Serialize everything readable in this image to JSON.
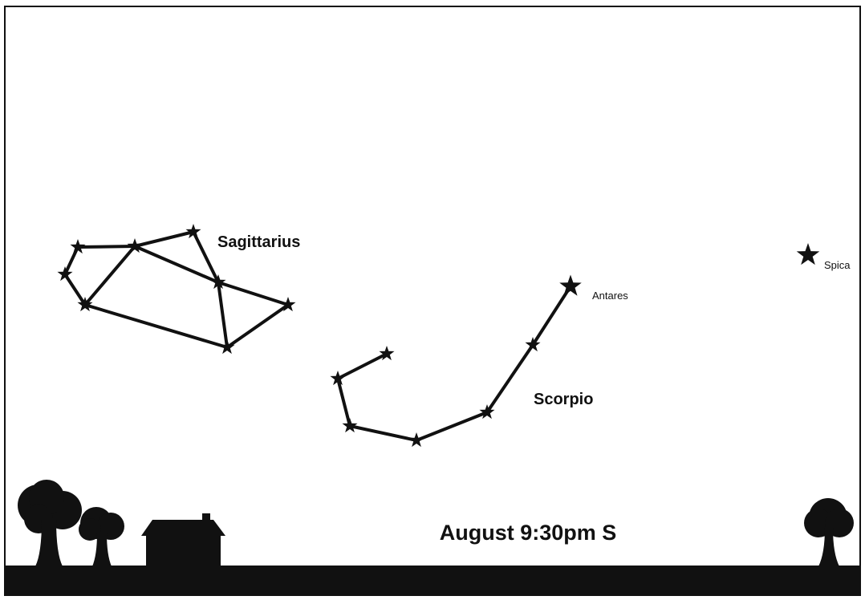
{
  "constellations": [
    {
      "name": "Sagittarius"
    },
    {
      "name": "Scorpio"
    }
  ],
  "stars": [
    {
      "name": "Antares"
    },
    {
      "name": "Spica"
    }
  ],
  "caption": "August 9:30pm S"
}
